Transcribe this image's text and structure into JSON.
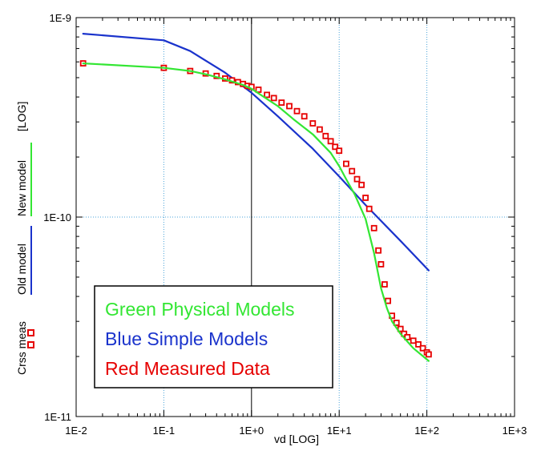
{
  "chart_data": {
    "type": "line",
    "xscale": "log",
    "yscale": "log",
    "xlim": [
      0.01,
      1000
    ],
    "ylim": [
      1e-11,
      1e-09
    ],
    "xlabel": "vd  [LOG]",
    "ylabel_parts": [
      "Crss meas",
      "Old model",
      "New model",
      "[LOG]"
    ],
    "x_tick_labels": [
      "1E-2",
      "1E-1",
      "1E+0",
      "1E+1",
      "1E+2",
      "1E+3"
    ],
    "x_tick_values": [
      0.01,
      0.1,
      1,
      10,
      100,
      1000
    ],
    "y_tick_labels": [
      "1E-11",
      "1E-10",
      "1E-9"
    ],
    "y_tick_values": [
      1e-11,
      1e-10,
      1e-09
    ],
    "grid": "dotted at decades",
    "legend": {
      "placement": "bottom-left",
      "entries": [
        {
          "label": "Green Physical Models",
          "color": "#33e633"
        },
        {
          "label": "Blue Simple Models",
          "color": "#1a33cc"
        },
        {
          "label": "Red Measured Data",
          "color": "#e60000"
        }
      ]
    },
    "series": [
      {
        "name": "New model",
        "color": "#33e633",
        "style": "line",
        "x": [
          0.012,
          0.1,
          0.2,
          0.3,
          0.5,
          0.8,
          1,
          2,
          3,
          5,
          8,
          10,
          12,
          15,
          20,
          25,
          30,
          35,
          40,
          50,
          70,
          105
        ],
        "y": [
          5.9e-10,
          5.6e-10,
          5.4e-10,
          5.2e-10,
          4.9e-10,
          4.6e-10,
          4.4e-10,
          3.6e-10,
          3.1e-10,
          2.6e-10,
          2.1e-10,
          1.8e-10,
          1.55e-10,
          1.3e-10,
          9.8e-11,
          6.6e-11,
          4.4e-11,
          3.5e-11,
          3e-11,
          2.6e-11,
          2.2e-11,
          1.9e-11
        ]
      },
      {
        "name": "Old model",
        "color": "#1a33cc",
        "style": "line",
        "x": [
          0.012,
          0.1,
          0.2,
          0.5,
          1,
          2,
          5,
          10,
          20,
          50,
          105
        ],
        "y": [
          8.3e-10,
          7.7e-10,
          6.8e-10,
          5.3e-10,
          4.2e-10,
          3.2e-10,
          2.2e-10,
          1.6e-10,
          1.15e-10,
          7.6e-11,
          5.4e-11
        ]
      },
      {
        "name": "Crss meas",
        "color": "#e60000",
        "style": "markers",
        "x": [
          0.012,
          0.1,
          0.2,
          0.3,
          0.4,
          0.5,
          0.6,
          0.7,
          0.8,
          0.9,
          1.0,
          1.2,
          1.5,
          1.8,
          2.2,
          2.7,
          3.3,
          4,
          5,
          6,
          7,
          8,
          9,
          10,
          12,
          14,
          16,
          18,
          20,
          22,
          25,
          28,
          30,
          33,
          36,
          40,
          45,
          50,
          55,
          60,
          70,
          80,
          90,
          100,
          105
        ],
        "y": [
          5.9e-10,
          5.6e-10,
          5.4e-10,
          5.25e-10,
          5.1e-10,
          4.95e-10,
          4.85e-10,
          4.75e-10,
          4.65e-10,
          4.55e-10,
          4.5e-10,
          4.35e-10,
          4.1e-10,
          3.95e-10,
          3.75e-10,
          3.6e-10,
          3.4e-10,
          3.2e-10,
          2.95e-10,
          2.75e-10,
          2.55e-10,
          2.4e-10,
          2.25e-10,
          2.15e-10,
          1.85e-10,
          1.7e-10,
          1.55e-10,
          1.45e-10,
          1.25e-10,
          1.1e-10,
          8.8e-11,
          6.8e-11,
          5.8e-11,
          4.6e-11,
          3.8e-11,
          3.2e-11,
          2.95e-11,
          2.75e-11,
          2.6e-11,
          2.5e-11,
          2.4e-11,
          2.3e-11,
          2.2e-11,
          2.1e-11,
          2.05e-11
        ]
      }
    ]
  }
}
